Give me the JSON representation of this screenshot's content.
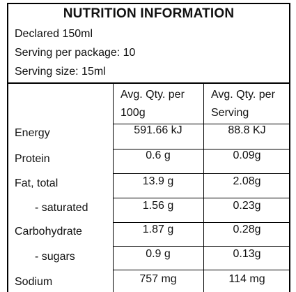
{
  "title": "NUTRITION INFORMATION",
  "declared": "Declared 150ml",
  "servings_per_package": "Serving per package: 10",
  "serving_size": "Serving size: 15ml",
  "columns": {
    "per_100": "Avg. Qty. per 100g",
    "per_serving": "Avg. Qty. per Serving"
  },
  "rows": [
    {
      "label": "Energy",
      "per_100": "591.66 kJ",
      "per_serving": "88.8 KJ"
    },
    {
      "label": "Protein",
      "per_100": "0.6 g",
      "per_serving": "0.09g"
    },
    {
      "label": "Fat, total",
      "per_100": "13.9 g",
      "per_serving": "2.08g"
    },
    {
      "label": "- saturated",
      "per_100": "1.56 g",
      "per_serving": "0.23g"
    },
    {
      "label": "Carbohydrate",
      "per_100": "1.87 g",
      "per_serving": "0.28g"
    },
    {
      "label": "- sugars",
      "per_100": "0.9 g",
      "per_serving": "0.13g"
    },
    {
      "label": "Sodium",
      "per_100": "757 mg",
      "per_serving": "114 mg"
    }
  ]
}
